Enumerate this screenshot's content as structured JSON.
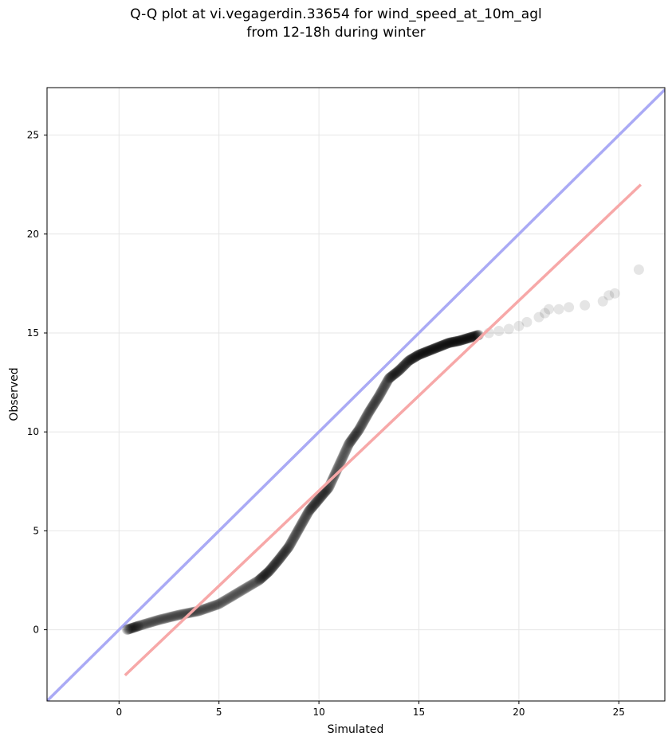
{
  "chart_data": {
    "type": "scatter",
    "title_line1": "Q-Q plot at vi.vegagerdin.33654 for wind_speed_at_10m_agl",
    "title_line2": "from 12-18h during winter",
    "xlabel": "Simulated",
    "ylabel": "Observed",
    "xlim": [
      -3.6,
      27.3
    ],
    "ylim": [
      -3.6,
      27.4
    ],
    "xticks": [
      0,
      5,
      10,
      15,
      20,
      25
    ],
    "yticks": [
      0,
      5,
      10,
      15,
      20,
      25
    ],
    "grid": true,
    "colors": {
      "points": "#000000",
      "identity_line": "#aaaaf5",
      "fit_line": "#f7a8a8",
      "grid": "#e6e6e6"
    },
    "identity_line": {
      "x": [
        -3.6,
        27.3
      ],
      "y": [
        -3.6,
        27.3
      ]
    },
    "fit_line": {
      "x": [
        0.3,
        26.1
      ],
      "y": [
        -2.3,
        22.5
      ]
    },
    "quantile_curve": {
      "x": [
        0.4,
        1.0,
        2.0,
        3.0,
        4.0,
        5.0,
        6.0,
        7.0,
        7.5,
        8.0,
        8.5,
        9.0,
        9.5,
        10.0,
        10.5,
        11.0,
        11.5,
        12.0,
        12.5,
        13.0,
        13.5,
        14.0,
        14.5,
        15.0,
        15.5,
        16.0,
        16.5,
        17.0,
        17.5,
        18.0
      ],
      "y": [
        0.0,
        0.2,
        0.5,
        0.75,
        0.95,
        1.3,
        1.9,
        2.5,
        2.95,
        3.55,
        4.2,
        5.1,
        6.0,
        6.6,
        7.2,
        8.3,
        9.4,
        10.1,
        11.0,
        11.8,
        12.7,
        13.1,
        13.6,
        13.9,
        14.1,
        14.3,
        14.5,
        14.6,
        14.75,
        14.9
      ]
    },
    "tail_points": [
      {
        "x": 18.5,
        "y": 15.0
      },
      {
        "x": 19.0,
        "y": 15.1
      },
      {
        "x": 19.5,
        "y": 15.2
      },
      {
        "x": 20.0,
        "y": 15.35
      },
      {
        "x": 20.4,
        "y": 15.55
      },
      {
        "x": 21.0,
        "y": 15.8
      },
      {
        "x": 21.3,
        "y": 16.0
      },
      {
        "x": 21.5,
        "y": 16.2
      },
      {
        "x": 22.0,
        "y": 16.2
      },
      {
        "x": 22.5,
        "y": 16.3
      },
      {
        "x": 23.3,
        "y": 16.4
      },
      {
        "x": 24.2,
        "y": 16.6
      },
      {
        "x": 24.5,
        "y": 16.9
      },
      {
        "x": 24.8,
        "y": 17.0
      },
      {
        "x": 26.0,
        "y": 18.2
      }
    ]
  }
}
